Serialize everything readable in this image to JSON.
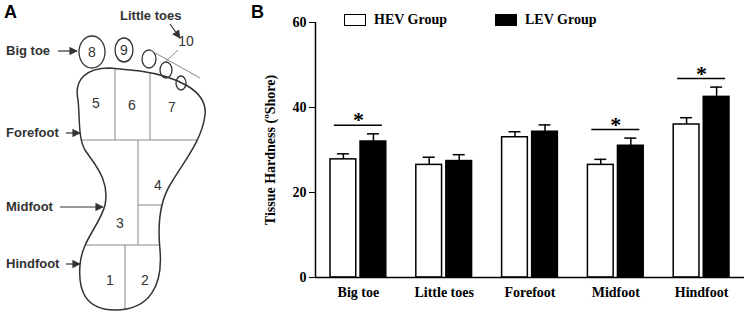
{
  "diagram": {
    "panel": "A",
    "labels": [
      "Big toe",
      "Little toes",
      "Forefoot",
      "Midfoot",
      "Hindfoot"
    ],
    "zones": [
      "1",
      "2",
      "3",
      "4",
      "5",
      "6",
      "7",
      "8",
      "9",
      "10"
    ]
  },
  "chart_data": {
    "panel": "B",
    "type": "bar",
    "y_label": "Tissue Hardness (ºShore)",
    "categories": [
      "Big toe",
      "Little toes",
      "Forefoot",
      "Midfoot",
      "Hindfoot"
    ],
    "series": [
      {
        "name": "HEV Group",
        "color": "#ffffff",
        "values": [
          27.8,
          26.5,
          33.0,
          26.5,
          36.0
        ],
        "errors": [
          1.3,
          1.8,
          1.3,
          1.3,
          1.6
        ]
      },
      {
        "name": "LEV Group",
        "color": "#000000",
        "values": [
          32.0,
          27.4,
          34.3,
          31.0,
          42.5
        ],
        "errors": [
          1.8,
          1.5,
          1.6,
          1.8,
          2.3
        ]
      }
    ],
    "significance": [
      {
        "category": "Big toe",
        "label": "*"
      },
      {
        "category": "Midfoot",
        "label": "*"
      },
      {
        "category": "Hindfoot",
        "label": "*"
      }
    ],
    "ylim": [
      0,
      60
    ],
    "yticks": [
      0,
      20,
      40,
      60
    ],
    "grid": false,
    "legend": "top"
  }
}
